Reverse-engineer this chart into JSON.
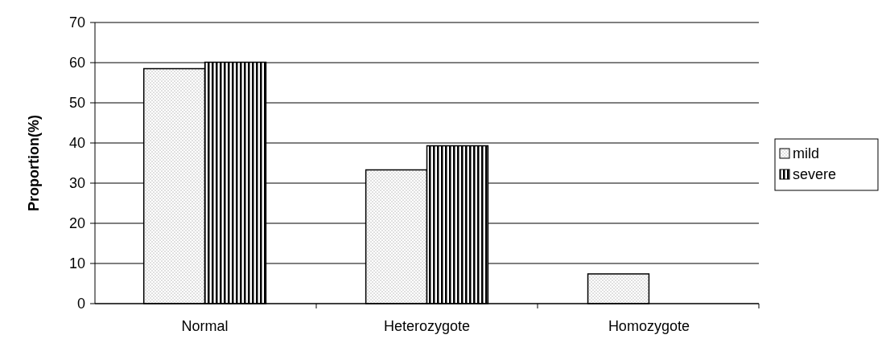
{
  "chart_data": {
    "type": "bar",
    "ylabel": "Proportion(%)",
    "categories": [
      "Normal",
      "Heterozygote",
      "Homozygote"
    ],
    "series": [
      {
        "name": "mild",
        "color": "#000000",
        "values": [
          58.5,
          33.3,
          7.4
        ]
      },
      {
        "name": "severe",
        "color": "#000000",
        "values": [
          60.1,
          39.3,
          0
        ]
      }
    ],
    "ylim": [
      0,
      70
    ],
    "yticks": [
      0,
      10,
      20,
      30,
      40,
      50,
      60,
      70
    ],
    "grid": "y",
    "legend": "right"
  }
}
